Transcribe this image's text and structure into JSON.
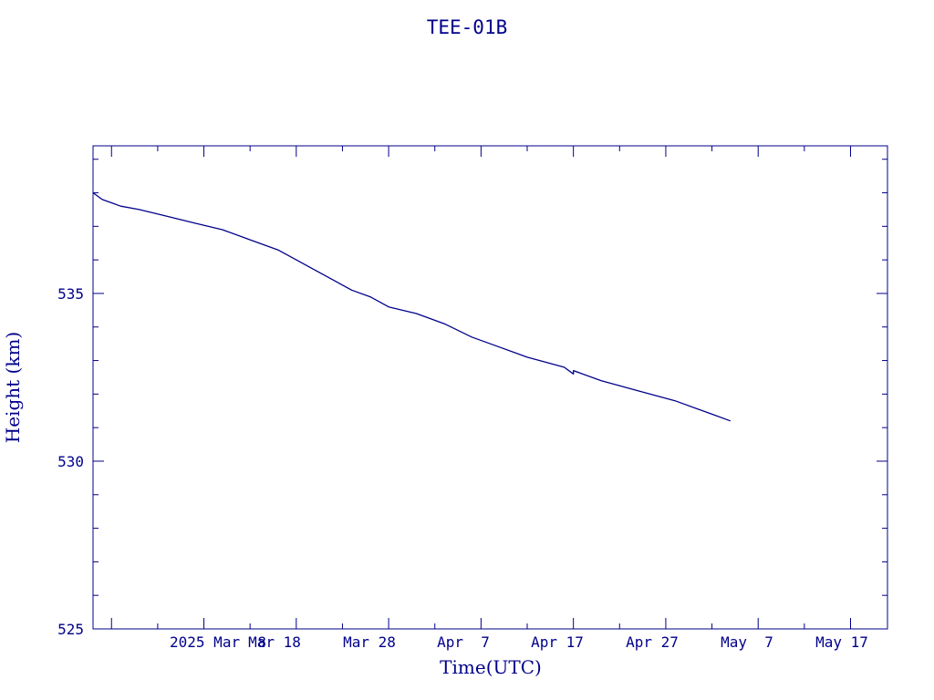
{
  "chart_data": {
    "type": "line",
    "title": "TEE-01B",
    "xlabel": "Time(UTC)",
    "ylabel": "Height (km)",
    "color": "#00008b",
    "grid": false,
    "ylim": [
      525,
      539.4
    ],
    "xlim": [
      "2025-02-24T00:00",
      "2025-05-21T00:00"
    ],
    "x_ticks": [
      {
        "date": "2025-03-03",
        "label": "2025 Mar  8"
      },
      {
        "date": "2025-03-08",
        "label": ""
      },
      {
        "date": "2025-03-18",
        "label": "Mar 18"
      },
      {
        "date": "2025-03-28",
        "label": "Mar 28"
      },
      {
        "date": "2025-04-07",
        "label": "Apr  7"
      },
      {
        "date": "2025-04-17",
        "label": "Apr 17"
      },
      {
        "date": "2025-04-27",
        "label": "Apr 27"
      },
      {
        "date": "2025-05-07",
        "label": "May  7"
      },
      {
        "date": "2025-05-17",
        "label": "May 17"
      }
    ],
    "x_tick_labels_display": [
      {
        "date": "2025-03-03",
        "label": "2025 Mar  8"
      },
      {
        "date": "2025-03-18",
        "label": "Mar 18"
      },
      {
        "date": "2025-03-28",
        "label": "Mar 28"
      },
      {
        "date": "2025-04-07",
        "label": "Apr  7"
      },
      {
        "date": "2025-04-17",
        "label": "Apr 17"
      },
      {
        "date": "2025-04-27",
        "label": "Apr 27"
      },
      {
        "date": "2025-05-07",
        "label": "May  7"
      },
      {
        "date": "2025-05-17",
        "label": "May 17"
      }
    ],
    "y_ticks_major": [
      525,
      530,
      535
    ],
    "y_tick_labels": [
      "525",
      "530",
      "535"
    ],
    "series": [
      {
        "x": [
          "2025-02-24",
          "2025-02-25",
          "2025-02-27",
          "2025-03-01",
          "2025-03-04",
          "2025-03-07",
          "2025-03-10",
          "2025-03-13",
          "2025-03-16",
          "2025-03-18",
          "2025-03-20",
          "2025-03-22",
          "2025-03-24",
          "2025-03-26",
          "2025-03-28",
          "2025-03-31",
          "2025-04-03",
          "2025-04-06",
          "2025-04-09",
          "2025-04-12",
          "2025-04-16",
          "2025-04-17",
          "2025-04-17",
          "2025-04-20",
          "2025-04-24",
          "2025-04-28",
          "2025-05-02",
          "2025-05-04"
        ],
        "y": [
          538.0,
          537.8,
          537.6,
          537.5,
          537.3,
          537.1,
          536.9,
          536.6,
          536.3,
          536.0,
          535.7,
          535.4,
          535.1,
          534.9,
          534.6,
          534.4,
          534.1,
          533.7,
          533.4,
          533.1,
          532.8,
          532.6,
          532.7,
          532.4,
          532.1,
          531.8,
          531.4,
          531.2
        ]
      }
    ]
  }
}
